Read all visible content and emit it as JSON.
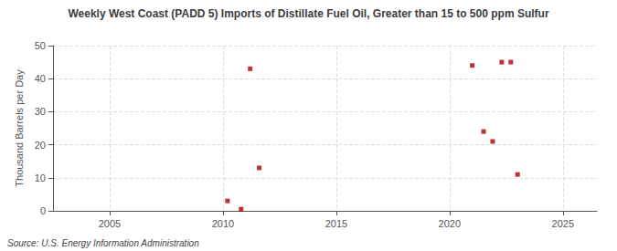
{
  "chart_data": {
    "type": "scatter",
    "title": "Weekly West Coast (PADD 5) Imports of Distillate Fuel Oil, Greater than 15 to 500 ppm Sulfur",
    "ylabel": "Thousand Barrels per Day",
    "annotations": [
      "Source: U.S. Energy Information Administration"
    ],
    "x": [
      2010.2,
      2010.8,
      2011.2,
      2021.0,
      2021.5,
      2021.9,
      2022.3,
      2022.7,
      2023.0,
      2011.6
    ],
    "values": [
      3.0,
      0.5,
      43.0,
      44.0,
      24.0,
      21.0,
      45.0,
      45.0,
      11.0,
      13.0
    ],
    "color": "#aa0000",
    "marker": "square",
    "xlim": [
      2002.5,
      2026.5
    ],
    "xticks": [
      2005,
      2010,
      2015,
      2020,
      2025
    ],
    "ylim": [
      0,
      50
    ],
    "yticks": [
      0,
      10,
      20,
      30,
      40,
      50
    ],
    "grid": true
  }
}
